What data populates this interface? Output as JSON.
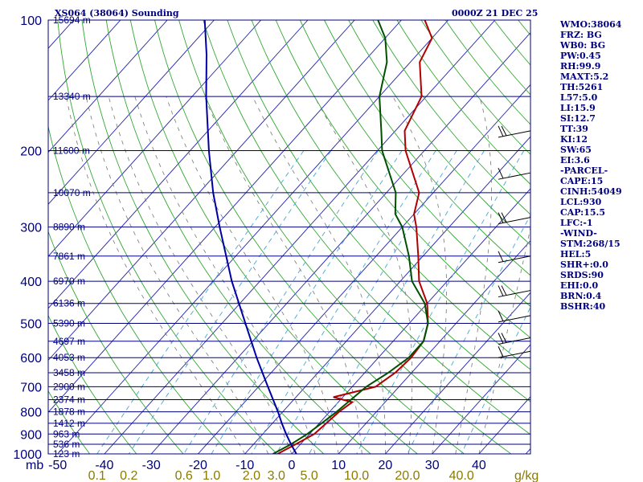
{
  "chart_data": {
    "type": "line",
    "title_left": "XS064 (38064) Sounding",
    "title_right": "0000Z 21 DEC 25",
    "x_unit_label": "mb",
    "mixing_unit_label": "g/kg",
    "pressure_ticks": [
      100,
      200,
      300,
      400,
      500,
      600,
      700,
      800,
      900,
      1000
    ],
    "pressure_range": [
      100,
      1000
    ],
    "temp_ticks": [
      -50,
      -40,
      -30,
      -20,
      -10,
      0,
      10,
      20,
      30,
      40
    ],
    "temp_range_at_1000mb": [
      -52,
      51
    ],
    "mixing_ratio_ticks": [
      "0.1",
      "0.2",
      "0.6",
      "1.0",
      "2.0",
      "3.0",
      "5.0",
      "10.0",
      "20.0",
      "40.0"
    ],
    "height_labels": [
      {
        "p": 100,
        "label": "15694 m"
      },
      {
        "p": 150,
        "label": "13340 m"
      },
      {
        "p": 200,
        "label": "11600 m"
      },
      {
        "p": 250,
        "label": "10070 m"
      },
      {
        "p": 300,
        "label": "8890 m"
      },
      {
        "p": 350,
        "label": "7861 m"
      },
      {
        "p": 400,
        "label": "6970 m"
      },
      {
        "p": 450,
        "label": "6136 m"
      },
      {
        "p": 500,
        "label": "5390 m"
      },
      {
        "p": 550,
        "label": "4697 m"
      },
      {
        "p": 600,
        "label": "4053 m"
      },
      {
        "p": 650,
        "label": "3458 m"
      },
      {
        "p": 700,
        "label": "2900 m"
      },
      {
        "p": 750,
        "label": "2374 m"
      },
      {
        "p": 800,
        "label": "1878 m"
      },
      {
        "p": 850,
        "label": "1412 m"
      },
      {
        "p": 900,
        "label": "963 m"
      },
      {
        "p": 950,
        "label": "536 m"
      },
      {
        "p": 1000,
        "label": "123 m"
      }
    ],
    "series": [
      {
        "name": "temperature",
        "color": "#b00000",
        "points": [
          [
            1000,
            -3
          ],
          [
            950,
            -1
          ],
          [
            900,
            1
          ],
          [
            850,
            1.5
          ],
          [
            800,
            2
          ],
          [
            760,
            3
          ],
          [
            740,
            -2
          ],
          [
            700,
            5
          ],
          [
            650,
            6.5
          ],
          [
            600,
            7
          ],
          [
            550,
            6.5
          ],
          [
            500,
            4
          ],
          [
            450,
            0
          ],
          [
            400,
            -6
          ],
          [
            350,
            -11
          ],
          [
            300,
            -17
          ],
          [
            280,
            -20
          ],
          [
            250,
            -23
          ],
          [
            200,
            -34
          ],
          [
            180,
            -38
          ],
          [
            150,
            -41
          ],
          [
            125,
            -48
          ],
          [
            110,
            -50
          ],
          [
            100,
            -55
          ]
        ]
      },
      {
        "name": "dewpoint",
        "color": "#005000",
        "points": [
          [
            1000,
            -4
          ],
          [
            950,
            -2
          ],
          [
            900,
            -0.5
          ],
          [
            850,
            0.5
          ],
          [
            800,
            1.5
          ],
          [
            700,
            3
          ],
          [
            650,
            5
          ],
          [
            600,
            6.5
          ],
          [
            550,
            6.5
          ],
          [
            500,
            4
          ],
          [
            450,
            -0.5
          ],
          [
            400,
            -7.5
          ],
          [
            350,
            -13
          ],
          [
            300,
            -20
          ],
          [
            280,
            -24
          ],
          [
            250,
            -28
          ],
          [
            200,
            -39
          ],
          [
            180,
            -43
          ],
          [
            150,
            -50
          ],
          [
            125,
            -55
          ],
          [
            110,
            -60
          ],
          [
            100,
            -65
          ]
        ]
      },
      {
        "name": "reference_profile",
        "color": "#0000a0",
        "points": [
          [
            1000,
            1
          ],
          [
            950,
            -2
          ],
          [
            900,
            -5
          ],
          [
            850,
            -8
          ],
          [
            800,
            -11
          ],
          [
            700,
            -18
          ],
          [
            600,
            -26
          ],
          [
            500,
            -35
          ],
          [
            400,
            -46
          ],
          [
            300,
            -59
          ],
          [
            250,
            -67
          ],
          [
            200,
            -76
          ],
          [
            150,
            -87
          ],
          [
            120,
            -95
          ],
          [
            100,
            -102
          ]
        ]
      }
    ]
  },
  "indices": [
    "WMO:38064",
    "FRZ: BG",
    "WB0: BG",
    "PW:0.45",
    "RH:99.9",
    "MAXT:5.2",
    "TH:5261",
    "L57:5.0",
    "LI:15.9",
    "SI:12.7",
    "TT:39",
    "KI:12",
    "SW:65",
    "EI:3.6",
    "-PARCEL-",
    "CAPE:15",
    "CINH:54049",
    "LCL:930",
    "CAP:15.5",
    "LFC:-1",
    "-WIND-",
    "STM:268/15",
    "HEL:5",
    "SHR+:0.0",
    "SRDS:90",
    "EHI:0.0",
    "BRN:0.4",
    "BSHR:40"
  ],
  "colors": {
    "background": "#ffffff",
    "isobar": "#00007f",
    "isotherm": "#2020b0",
    "dry_adiabat": "#33a833",
    "moist_adiabat": "#777777",
    "mixing_ratio": "#44a8d8",
    "text": "#00007f"
  }
}
